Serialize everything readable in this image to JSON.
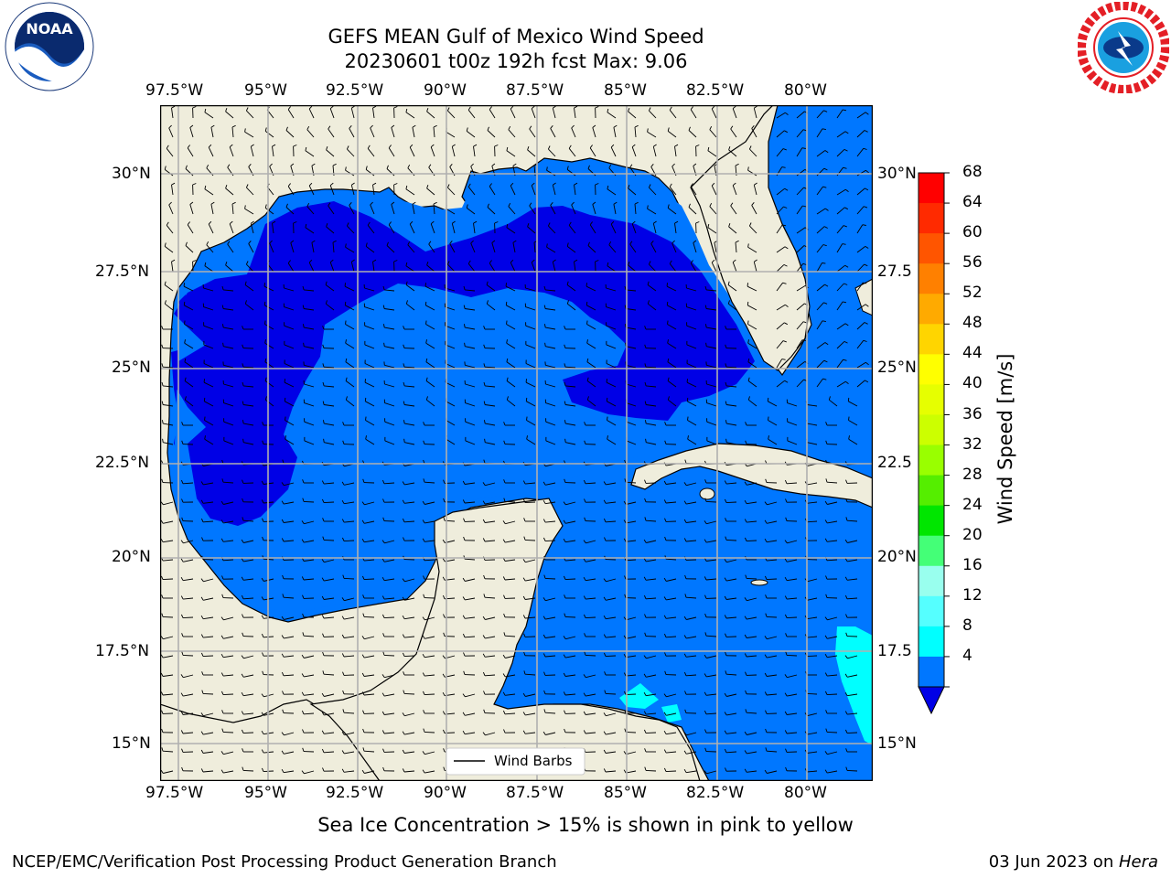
{
  "title": {
    "line1": "GEFS MEAN Gulf of Mexico Wind Speed",
    "line2": "20230601 t00z 192h fcst   Max: 9.06"
  },
  "logos": {
    "left": {
      "name": "noaa-logo",
      "text": "NOAA"
    },
    "right": {
      "name": "nws-logo"
    }
  },
  "map": {
    "lon_ticks": [
      "97.5°W",
      "95°W",
      "92.5°W",
      "90°W",
      "87.5°W",
      "85°W",
      "82.5°W",
      "80°W"
    ],
    "lat_ticks_left": [
      "30°N",
      "27.5°N",
      "25°N",
      "22.5°N",
      "20°N",
      "17.5°N",
      "15°N"
    ],
    "lat_ticks_right": [
      "30°N",
      "27.5",
      "25°N",
      "22.5",
      "20°N",
      "17.5",
      "15°N"
    ],
    "legend_label": "Wind Barbs",
    "colors": {
      "land": "#efeddc",
      "wind_4_8": "#0077ff",
      "wind_below_4": "#0000e6",
      "wind_12_16": "#00ffff"
    }
  },
  "colorbar": {
    "label": "Wind Speed [m/s]",
    "ticks": [
      "68",
      "64",
      "60",
      "56",
      "52",
      "48",
      "44",
      "40",
      "36",
      "32",
      "28",
      "24",
      "20",
      "16",
      "12",
      "8",
      "4"
    ],
    "colors": [
      "#ff0000",
      "#ff2a00",
      "#ff5500",
      "#ff8000",
      "#ffaa00",
      "#ffd500",
      "#ffff00",
      "#e6ff00",
      "#ccff00",
      "#99ff00",
      "#55ee00",
      "#00e600",
      "#44ff77",
      "#99ffee",
      "#55ffff",
      "#00ffff",
      "#0077ff"
    ],
    "underflow_color": "#0000e6"
  },
  "caption": "Sea Ice Concentration > 15% is shown in pink to yellow",
  "footer": {
    "left": "NCEP/EMC/Verification Post Processing Product Generation Branch",
    "right_date": "03 Jun 2023 on ",
    "right_host": "Hera"
  }
}
